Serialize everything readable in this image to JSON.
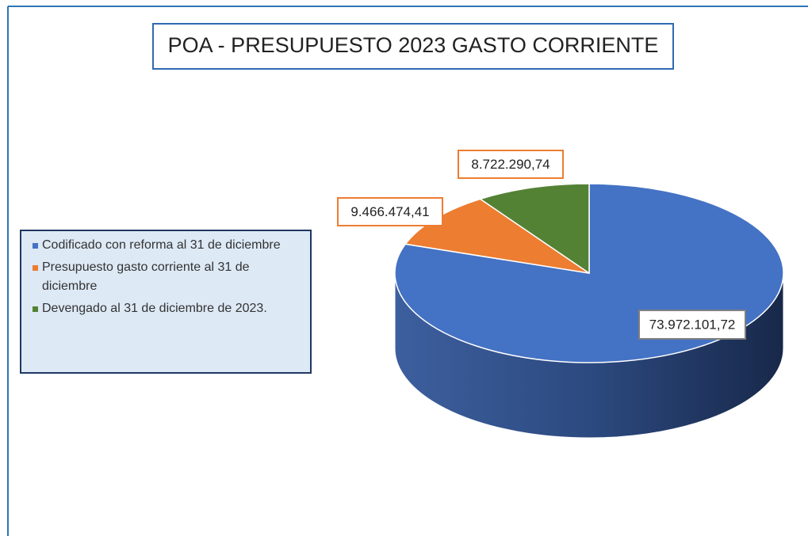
{
  "chart_data": {
    "type": "pie",
    "title": "POA - PRESUPUESTO  2023  GASTO CORRIENTE",
    "categories": [
      "Codificado con reforma al 31 de diciembre",
      "Presupuesto gasto corriente al 31 de diciembre",
      "Devengado al 31 de diciembre de 2023."
    ],
    "values": [
      73972101.72,
      9466474.41,
      8722290.74
    ],
    "value_labels": [
      "73.972.101,72",
      "9.466.474,41",
      "8.722.290,74"
    ],
    "colors": [
      "#4472c4",
      "#ed7d31",
      "#548235"
    ],
    "legend": "left"
  }
}
